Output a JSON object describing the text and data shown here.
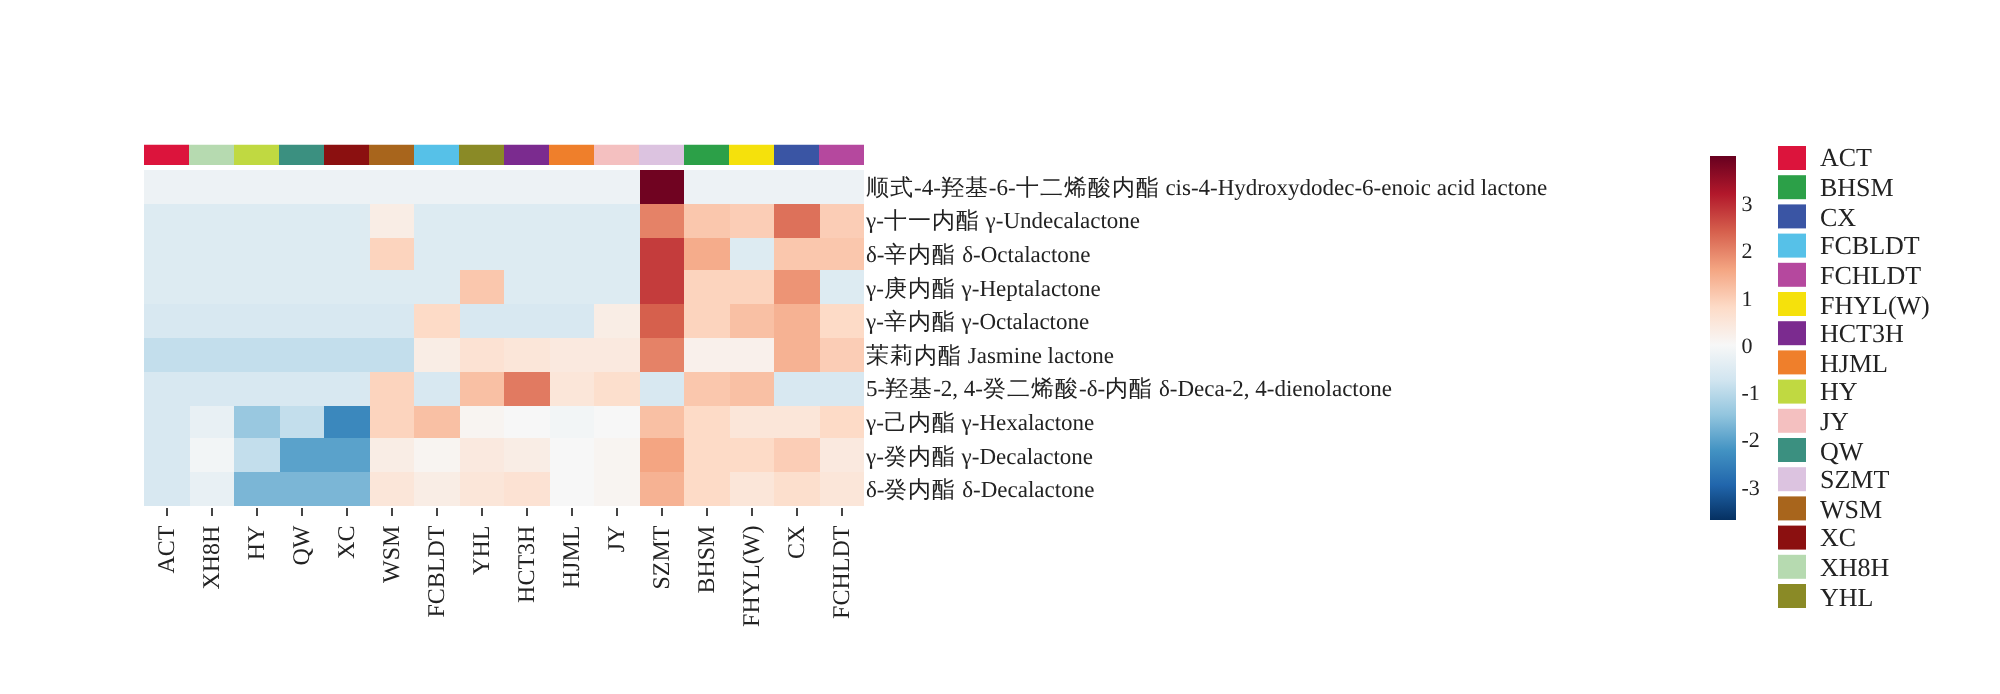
{
  "chart_data": [
    {
      "type": "heatmap",
      "categories": [
        "ACT",
        "XH8H",
        "HY",
        "QW",
        "XC",
        "WSM",
        "FCBLDT",
        "YHL",
        "HCT3H",
        "HJML",
        "JY",
        "SZMT",
        "BHSM",
        "FHYL(W)",
        "CX",
        "FCHLDT"
      ],
      "colors": [
        "#dc143c",
        "#b6dab0",
        "#c0d941",
        "#3b9080",
        "#8b1010",
        "#a8651c",
        "#56c1e8",
        "#8a8a26",
        "#7b2b8f",
        "#ef7f2b",
        "#f4c0c0",
        "#dcc3e0",
        "#2ca048",
        "#f5e10c",
        "#3a55a4",
        "#b5489e"
      ],
      "y_categories": [
        "顺式-4-羟基-6-十二烯酸内酯 cis-4-Hydroxydodec-6-enoic acid lactone",
        "γ-十一内酯 γ-Undecalactone",
        "δ-辛内酯 δ-Octalactone",
        "γ-庚内酯 γ-Heptalactone",
        "γ-辛内酯 γ-Octalactone",
        "茉莉内酯 Jasmine lactone",
        "5-羟基-2, 4-癸二烯酸-δ-内酯 δ-Deca-2, 4-dienolactone",
        "γ-己内酯 γ-Hexalactone",
        "γ-癸内酯 γ-Decalactone",
        "δ-癸内酯 δ-Decalactone"
      ],
      "cells": [
        [
          -0.2,
          -0.2,
          -0.2,
          -0.2,
          -0.2,
          -0.2,
          -0.2,
          -0.2,
          -0.2,
          -0.2,
          -0.2,
          3.9,
          -0.2,
          -0.2,
          -0.2,
          -0.2
        ],
        [
          -0.5,
          -0.5,
          -0.5,
          -0.5,
          -0.5,
          0.3,
          -0.5,
          -0.5,
          -0.5,
          -0.5,
          -0.5,
          2.0,
          1.1,
          1.0,
          2.2,
          1.0
        ],
        [
          -0.5,
          -0.5,
          -0.5,
          -0.5,
          -0.5,
          0.9,
          -0.5,
          -0.5,
          -0.5,
          -0.5,
          -0.5,
          2.8,
          1.5,
          -0.5,
          1.1,
          1.1
        ],
        [
          -0.5,
          -0.5,
          -0.5,
          -0.5,
          -0.5,
          -0.5,
          -0.5,
          1.1,
          -0.5,
          -0.5,
          -0.5,
          2.8,
          0.9,
          0.9,
          1.8,
          -0.5
        ],
        [
          -0.6,
          -0.6,
          -0.6,
          -0.6,
          -0.6,
          -0.6,
          0.8,
          -0.6,
          -0.6,
          -0.6,
          0.3,
          2.4,
          0.9,
          1.2,
          1.4,
          0.8
        ],
        [
          -0.9,
          -0.9,
          -0.9,
          -0.9,
          -0.9,
          -0.9,
          0.3,
          0.6,
          0.5,
          0.4,
          0.4,
          2.0,
          0.2,
          0.2,
          1.4,
          1.0
        ],
        [
          -0.6,
          -0.6,
          -0.6,
          -0.6,
          -0.6,
          0.9,
          -0.6,
          1.2,
          2.1,
          0.5,
          0.7,
          -0.6,
          1.1,
          1.2,
          -0.6,
          -0.6
        ],
        [
          -0.6,
          -0.3,
          -1.4,
          -0.9,
          -2.4,
          0.9,
          1.2,
          0.1,
          0.0,
          -0.1,
          0.0,
          1.2,
          0.8,
          0.5,
          0.5,
          0.8
        ],
        [
          -0.6,
          -0.1,
          -0.9,
          -2.0,
          -2.0,
          0.3,
          0.1,
          0.4,
          0.3,
          0.0,
          0.1,
          1.6,
          0.8,
          0.8,
          1.0,
          0.4
        ],
        [
          -0.6,
          -0.3,
          -1.7,
          -1.7,
          -1.7,
          0.5,
          0.3,
          0.5,
          0.6,
          0.0,
          0.1,
          1.4,
          0.8,
          0.5,
          0.7,
          0.5
        ]
      ],
      "clim": [
        -3.7,
        4.0
      ],
      "cticks": [
        -3,
        -2,
        -1,
        0,
        1,
        2,
        3
      ]
    },
    {
      "type": "other",
      "categories": [
        "ACT",
        "BHSM",
        "CX",
        "FCBLDT",
        "FCHLDT",
        "FHYL(W)",
        "HCT3H",
        "HJML",
        "HY",
        "JY",
        "QW",
        "SZMT",
        "WSM",
        "XC",
        "XH8H",
        "YHL"
      ],
      "colors": [
        "#dc143c",
        "#2ca048",
        "#3a55a4",
        "#56c1e8",
        "#b5489e",
        "#f5e10c",
        "#7b2b8f",
        "#ef7f2b",
        "#c0d941",
        "#f4c0c0",
        "#3b9080",
        "#dcc3e0",
        "#a8651c",
        "#8b1010",
        "#b6dab0",
        "#8a8a26"
      ]
    }
  ]
}
